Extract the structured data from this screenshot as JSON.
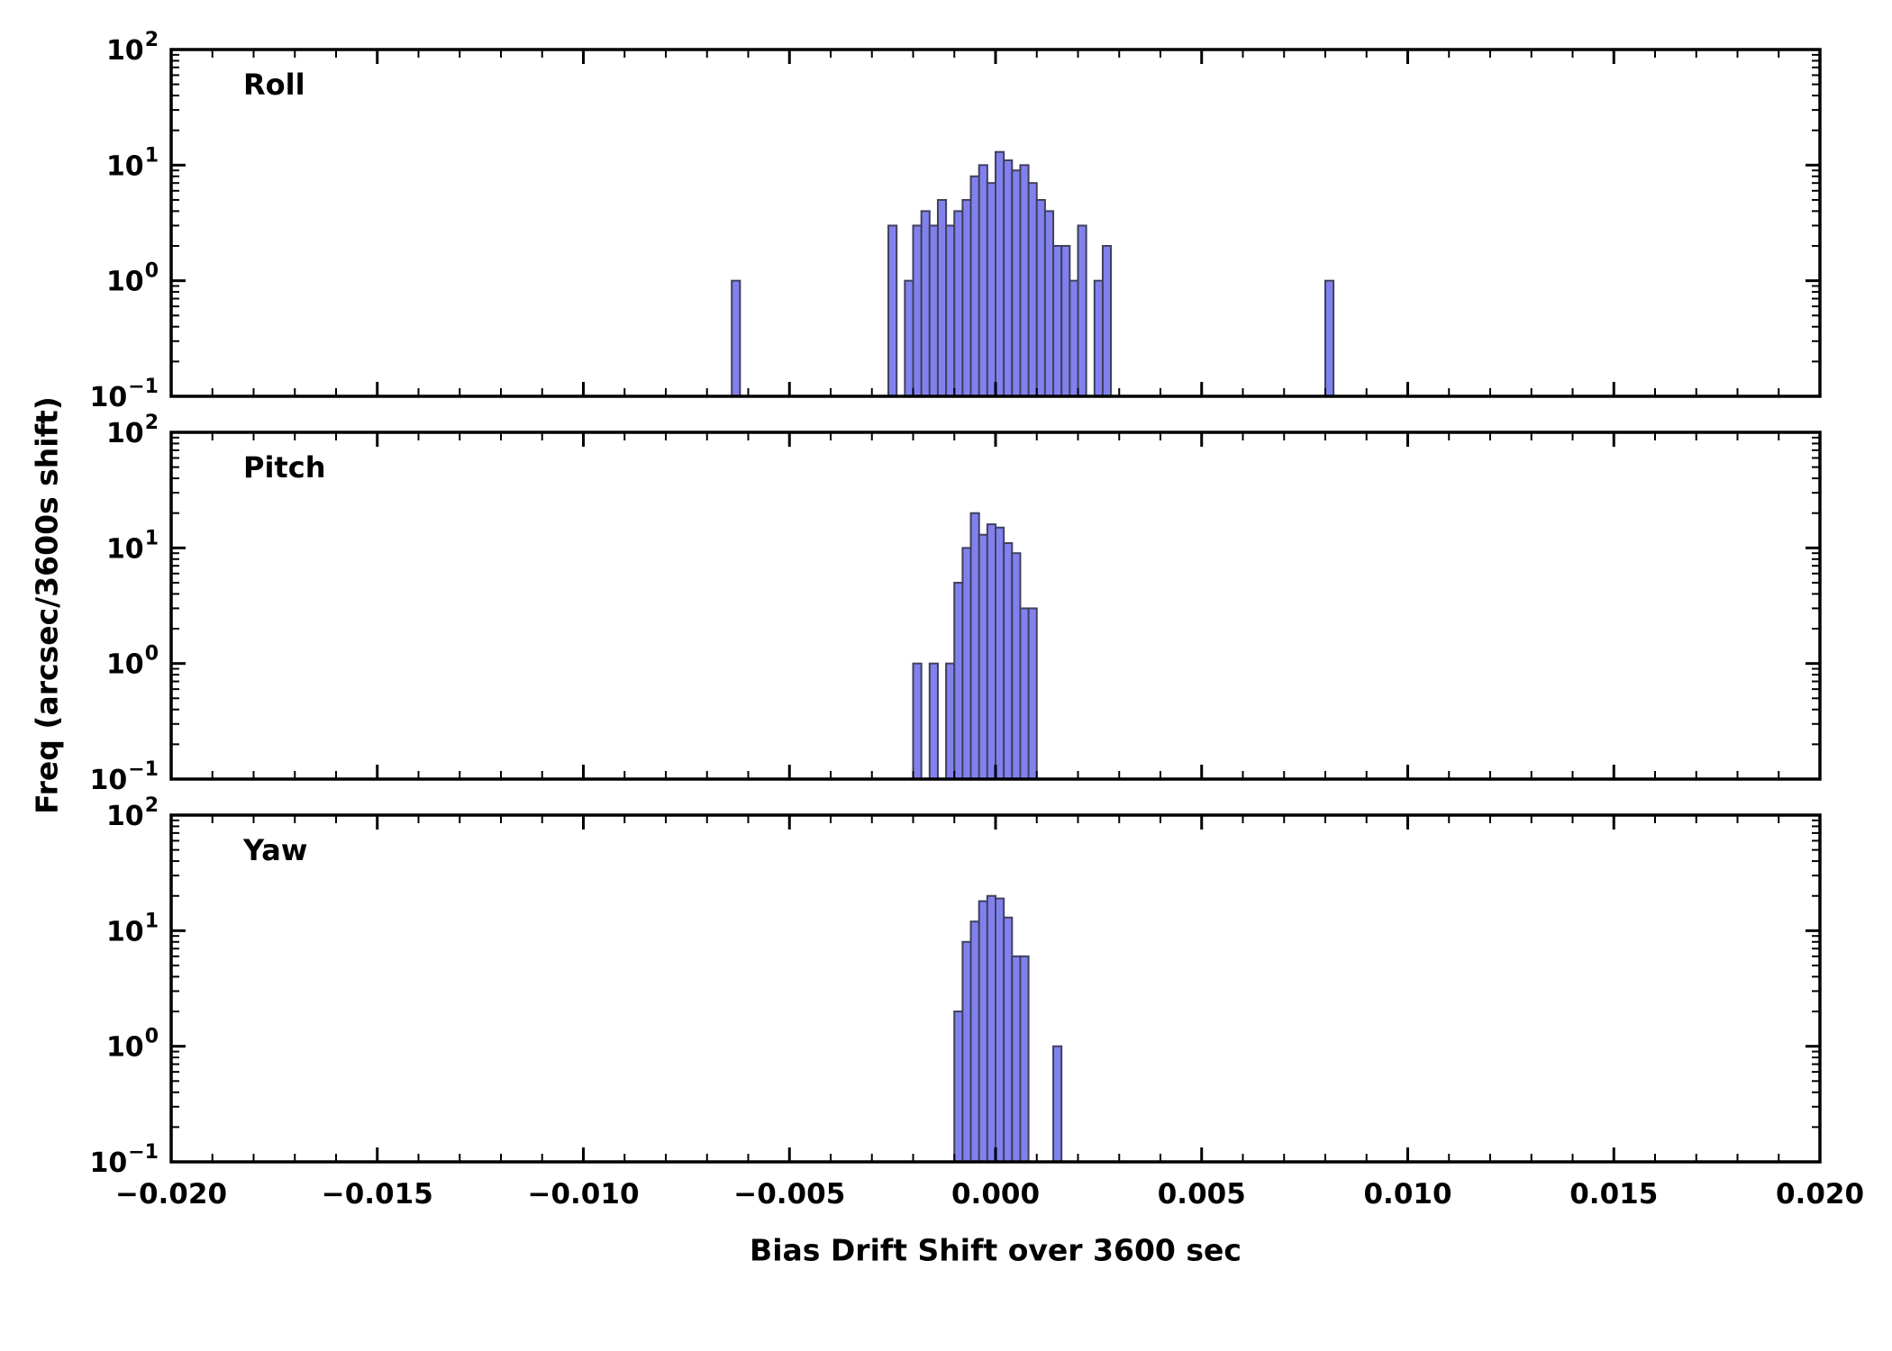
{
  "chart_data": {
    "type": "bar",
    "subtype": "histogram-log-y",
    "xlabel": "Bias Drift Shift over 3600 sec",
    "ylabel": "Freq (arcsec/3600s shift)",
    "x_range": [
      -0.02,
      0.02
    ],
    "y_scale": "log",
    "y_range": [
      0.1,
      100
    ],
    "x_major_step": 0.005,
    "x_minor_step": 0.001,
    "x_ticks": [
      {
        "v": -0.02,
        "label": "−0.020"
      },
      {
        "v": -0.015,
        "label": "−0.015"
      },
      {
        "v": -0.01,
        "label": "−0.010"
      },
      {
        "v": -0.005,
        "label": "−0.005"
      },
      {
        "v": 0.0,
        "label": "0.000"
      },
      {
        "v": 0.005,
        "label": "0.005"
      },
      {
        "v": 0.01,
        "label": "0.010"
      },
      {
        "v": 0.015,
        "label": "0.015"
      },
      {
        "v": 0.02,
        "label": "0.020"
      }
    ],
    "y_ticks": [
      {
        "v": 100,
        "base": "10",
        "exp": "2"
      },
      {
        "v": 10,
        "base": "10",
        "exp": "1"
      },
      {
        "v": 1,
        "base": "10",
        "exp": "0"
      },
      {
        "v": 0.1,
        "base": "10",
        "exp": "−1"
      }
    ],
    "colors": {
      "bar_fill": "#8181ee",
      "bar_edge": "#40405e",
      "axis": "#000000",
      "background": "#ffffff"
    },
    "panels": [
      {
        "label": "Roll",
        "bin_width": 0.0002,
        "bin_start": -0.0026,
        "counts": [
          3,
          0,
          1,
          3,
          4,
          3,
          5,
          3,
          4,
          5,
          8,
          10,
          7,
          13,
          11,
          9,
          10,
          7,
          5,
          4,
          2,
          2,
          1,
          3,
          0,
          1,
          2
        ],
        "extra_bars": [
          {
            "x": -0.0064,
            "count": 1
          },
          {
            "x": 0.008,
            "count": 1
          }
        ]
      },
      {
        "label": "Pitch",
        "bin_width": 0.0002,
        "bin_start": -0.002,
        "counts": [
          1,
          0,
          1,
          0,
          1,
          5,
          10,
          20,
          13,
          16,
          15,
          11,
          9,
          3,
          3
        ],
        "extra_bars": []
      },
      {
        "label": "Yaw",
        "bin_width": 0.0002,
        "bin_start": -0.001,
        "counts": [
          2,
          8,
          12,
          18,
          20,
          19,
          13,
          6,
          6
        ],
        "extra_bars": [
          {
            "x": 0.0014,
            "count": 1
          }
        ]
      }
    ]
  }
}
